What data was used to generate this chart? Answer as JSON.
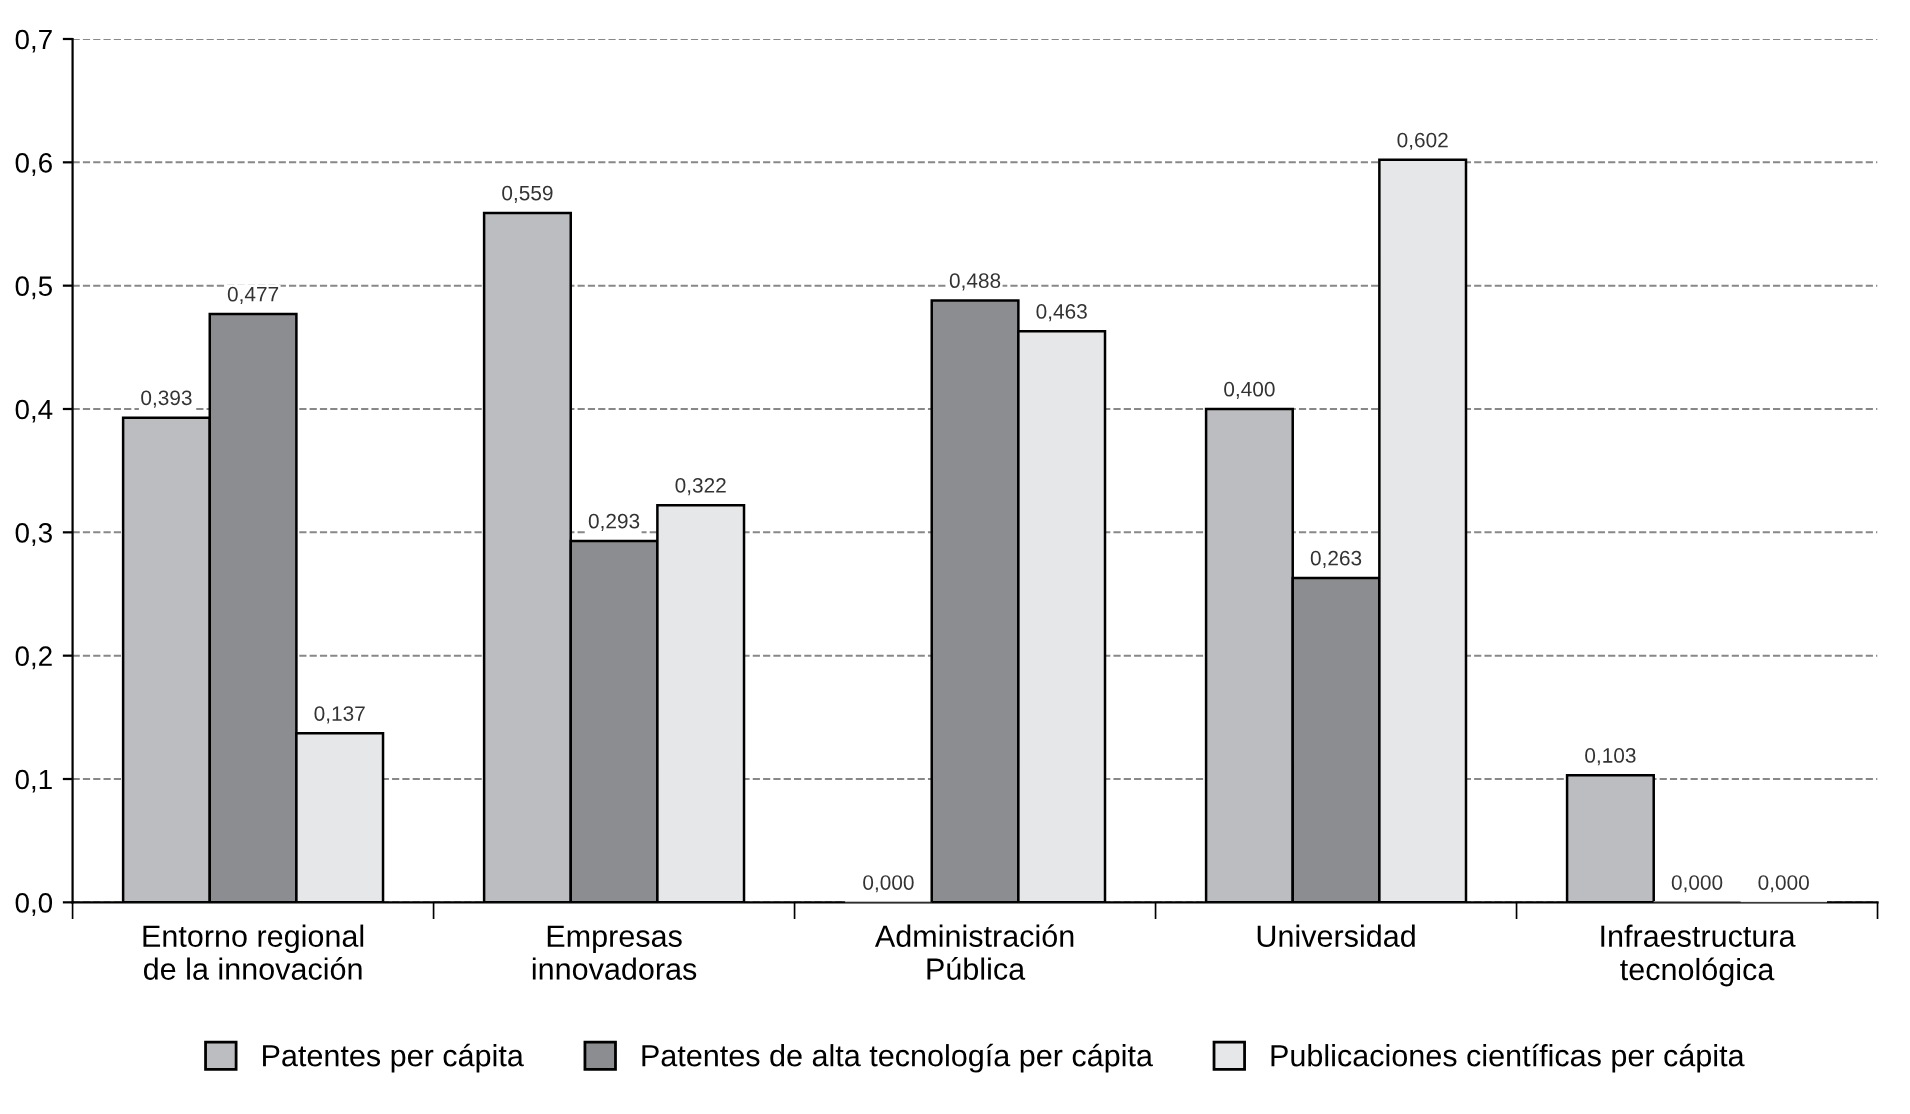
{
  "chart_data": {
    "type": "bar",
    "categories": [
      "Entorno regional\nde la innovación",
      "Empresas\ninnovadoras",
      "Administración\nPública",
      "Universidad",
      "Infraestructura\ntecnológica"
    ],
    "series": [
      {
        "name": "Patentes per cápita",
        "color": "#bcbdc0",
        "values": [
          0.393,
          0.559,
          0.0,
          0.4,
          0.103
        ],
        "value_labels": [
          "0,393",
          "0,559",
          "0,000",
          "0,400",
          "0,103"
        ]
      },
      {
        "name": "Patentes de alta tecnología per cápita",
        "color": "#8c8d90",
        "values": [
          0.477,
          0.293,
          0.488,
          0.263,
          0.0
        ],
        "value_labels": [
          "0,477",
          "0,293",
          "0,488",
          "0,263",
          "0,000"
        ]
      },
      {
        "name": "Publicaciones científicas per cápita",
        "color": "#e6e7e8",
        "values": [
          0.137,
          0.322,
          0.463,
          0.602,
          0.0
        ],
        "value_labels": [
          "0,137",
          "0,322",
          "0,463",
          "0,602",
          "0,000"
        ]
      }
    ],
    "ylim": [
      0,
      0.7
    ],
    "yticks": [
      {
        "value": 0,
        "label": "0,0"
      },
      {
        "value": 0.1,
        "label": "0,1"
      },
      {
        "value": 0.2,
        "label": "0,2"
      },
      {
        "value": 0.3,
        "label": "0,3"
      },
      {
        "value": 0.4,
        "label": "0,4"
      },
      {
        "value": 0.5,
        "label": "0,5"
      },
      {
        "value": 0.6,
        "label": "0,6"
      },
      {
        "value": 0.7,
        "label": "0,7"
      }
    ],
    "grid": "y",
    "legend": "bottom"
  }
}
